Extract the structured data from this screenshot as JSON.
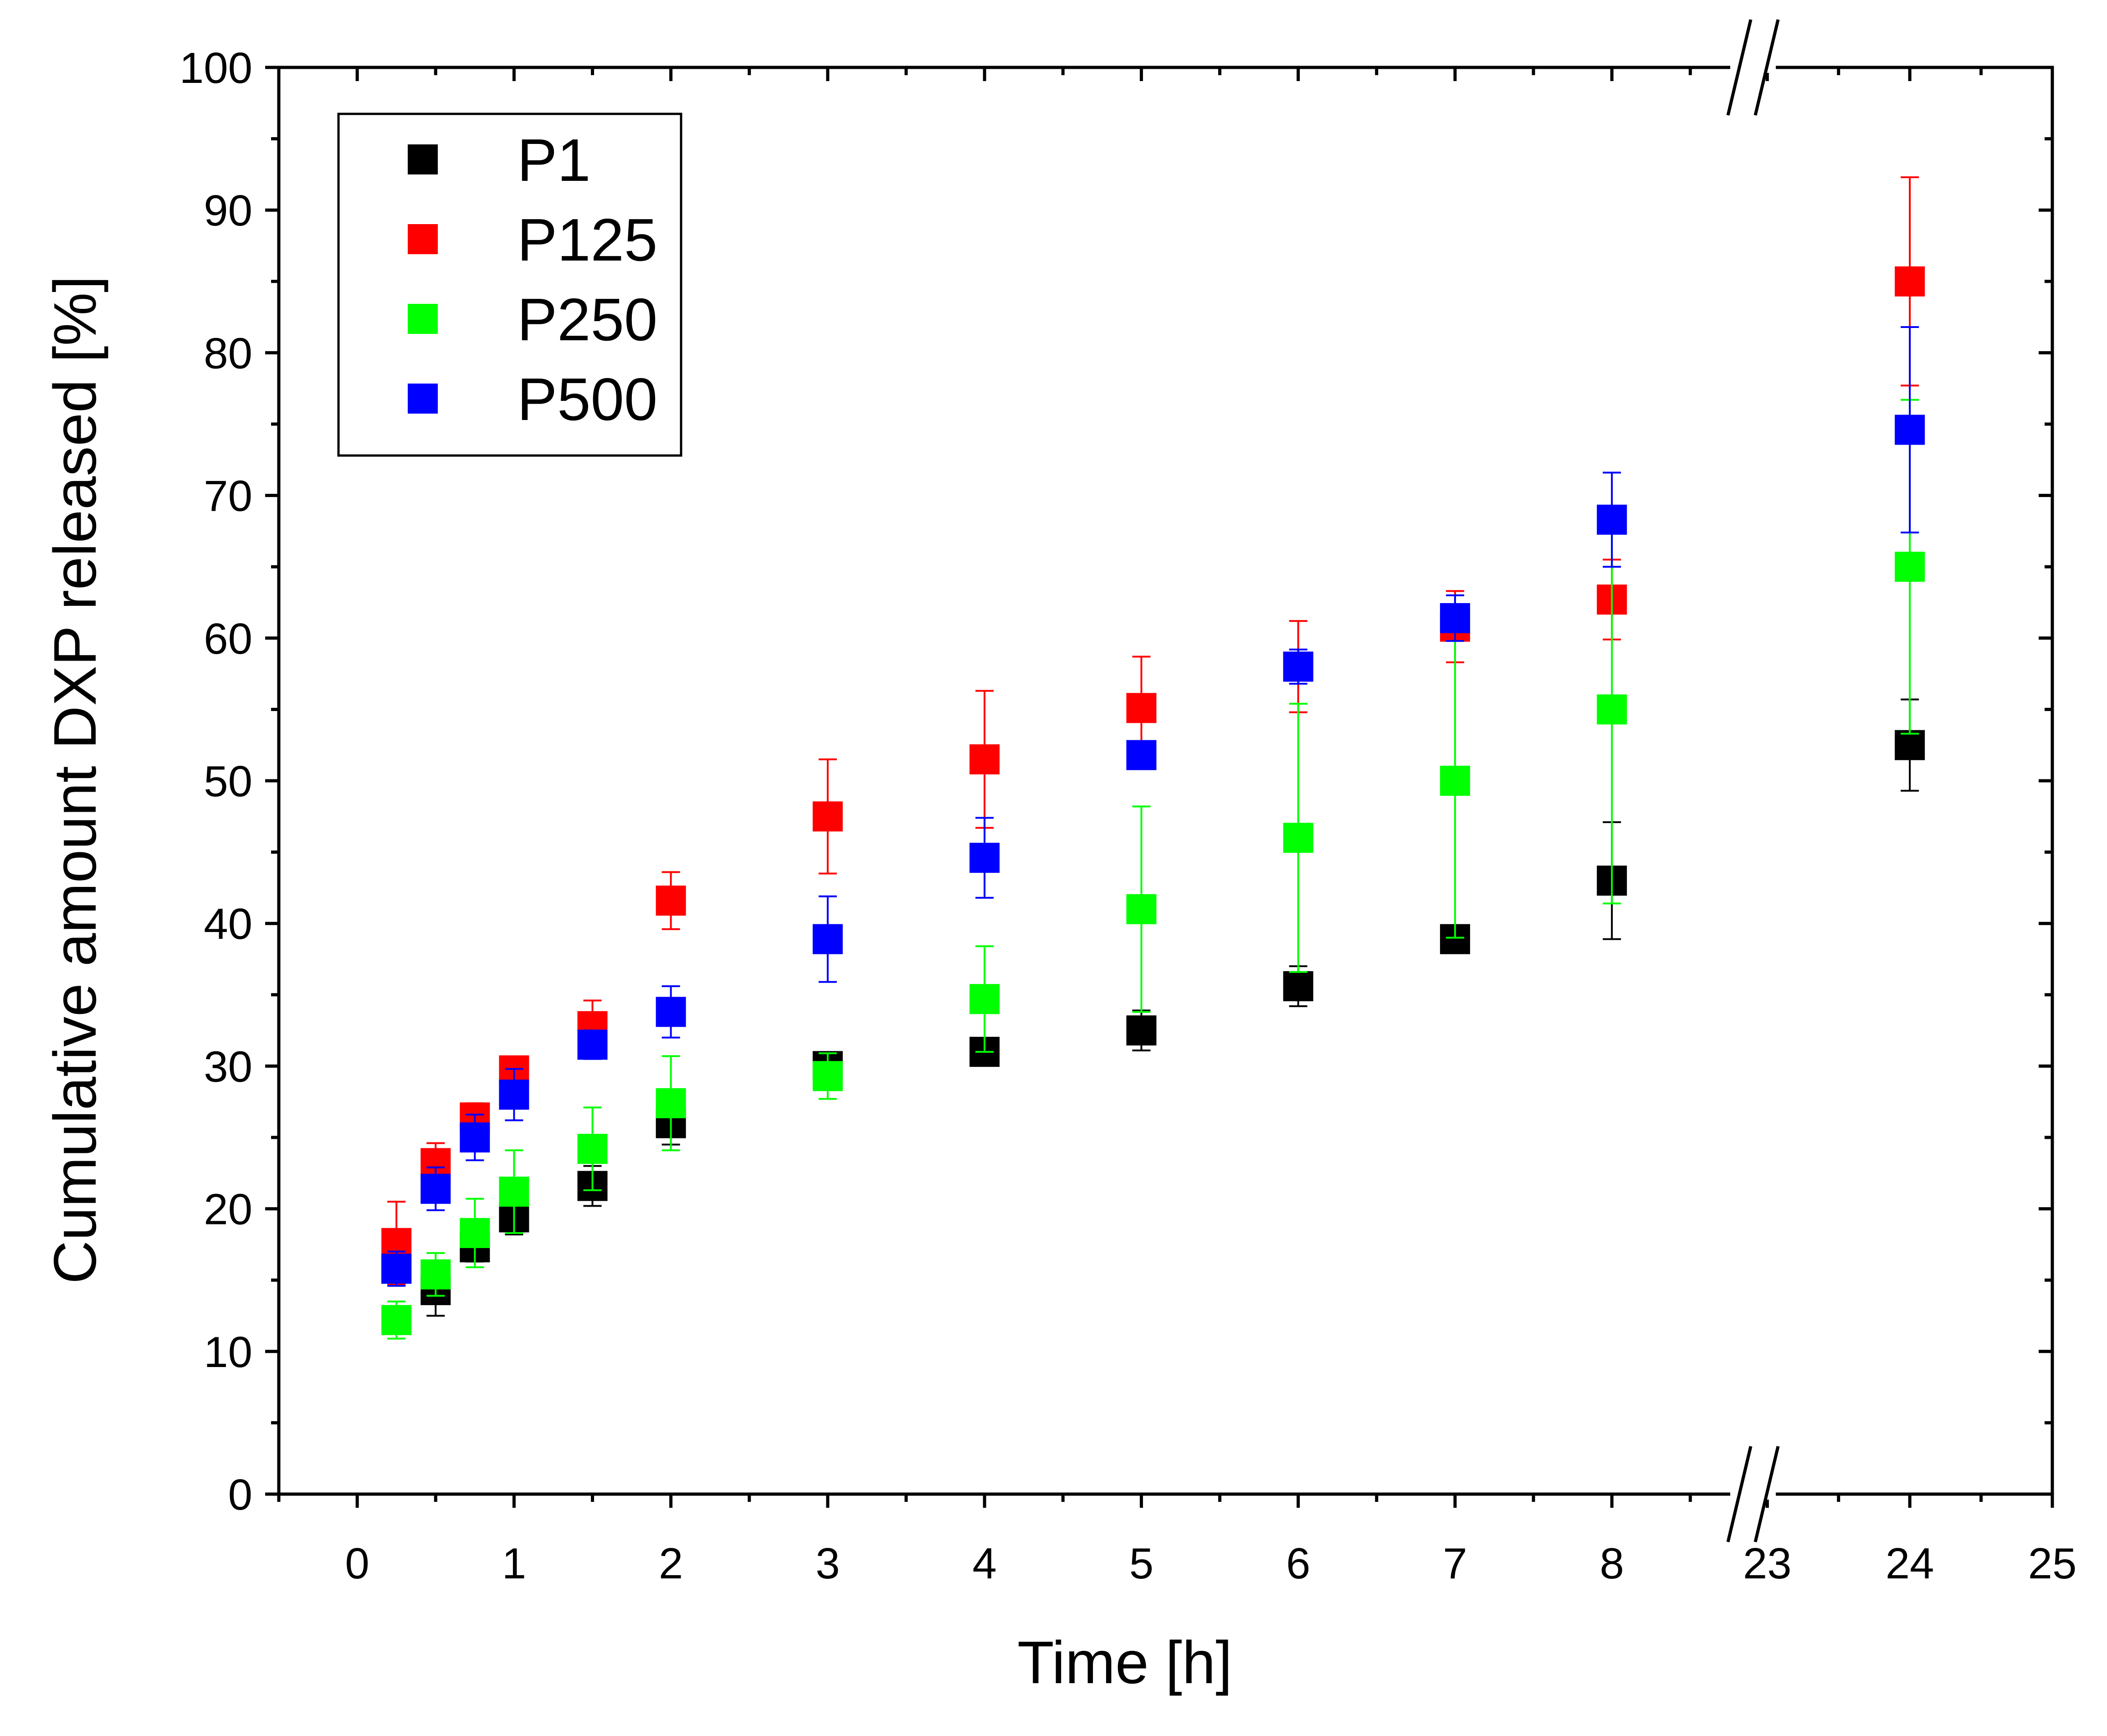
{
  "chart_data": {
    "type": "scatter",
    "title": "",
    "xlabel": "Time [h]",
    "ylabel": "Cumulative amount DXP released [%]",
    "ylim": [
      0,
      100
    ],
    "y_ticks": [
      "0",
      "10",
      "20",
      "30",
      "40",
      "50",
      "60",
      "70",
      "80",
      "90",
      "100"
    ],
    "x_segments": [
      {
        "range": [
          -0.5,
          8.9
        ],
        "tick_values": [
          0,
          1,
          2,
          3,
          4,
          5,
          6,
          7,
          8
        ]
      },
      {
        "range": [
          22.9,
          25
        ],
        "tick_values": [
          23,
          24,
          25
        ]
      }
    ],
    "x_ticks": [
      "0",
      "1",
      "2",
      "3",
      "4",
      "5",
      "6",
      "7",
      "8",
      "23",
      "24",
      "25"
    ],
    "axis_break": {
      "after": 8.9,
      "before": 22.9
    },
    "legend_position": "top-left",
    "series": [
      {
        "name": "P1",
        "color": "#000000",
        "x": [
          0.25,
          0.5,
          0.75,
          1,
          1.5,
          2,
          3,
          4,
          5,
          6,
          7,
          8,
          24
        ],
        "y": [
          15.8,
          14.3,
          17.3,
          19.4,
          21.6,
          26.0,
          30.0,
          31.0,
          32.5,
          35.6,
          38.9,
          43.0,
          52.5
        ],
        "err": [
          1.0,
          1.8,
          1.0,
          1.2,
          1.4,
          1.5,
          0.6,
          0.6,
          1.4,
          1.4,
          0.7,
          4.1,
          3.2
        ]
      },
      {
        "name": "P125",
        "color": "#ff0000",
        "x": [
          0.25,
          0.5,
          0.75,
          1,
          1.5,
          2,
          3,
          4,
          5,
          6,
          7,
          8,
          24
        ],
        "y": [
          17.6,
          23.2,
          26.4,
          29.7,
          32.8,
          41.6,
          47.5,
          51.5,
          55.1,
          58.0,
          60.8,
          62.7,
          85.0
        ],
        "err": [
          2.9,
          1.4,
          1.0,
          0.9,
          1.8,
          2.0,
          4.0,
          4.8,
          3.6,
          3.2,
          2.5,
          2.8,
          7.3
        ]
      },
      {
        "name": "P250",
        "color": "#00ff00",
        "x": [
          0.25,
          0.5,
          0.75,
          1,
          1.5,
          2,
          3,
          4,
          5,
          6,
          7,
          8,
          24
        ],
        "y": [
          12.2,
          15.4,
          18.3,
          21.2,
          24.2,
          27.4,
          29.3,
          34.7,
          41.0,
          46.0,
          50.0,
          55.0,
          65.0
        ],
        "err": [
          1.3,
          1.5,
          2.4,
          2.9,
          2.9,
          3.3,
          1.6,
          3.7,
          7.2,
          9.4,
          11.0,
          13.6,
          11.7
        ]
      },
      {
        "name": "P500",
        "color": "#0000ff",
        "x": [
          0.25,
          0.5,
          0.75,
          1,
          1.5,
          2,
          3,
          4,
          5,
          6,
          7,
          8,
          24
        ],
        "y": [
          15.8,
          21.4,
          25.0,
          28.0,
          31.5,
          33.8,
          38.9,
          44.6,
          51.8,
          58.0,
          61.4,
          68.3,
          74.6
        ],
        "err": [
          1.2,
          1.5,
          1.6,
          1.8,
          1.0,
          1.8,
          3.0,
          2.8,
          0.9,
          1.2,
          1.6,
          3.3,
          7.2
        ]
      }
    ]
  }
}
